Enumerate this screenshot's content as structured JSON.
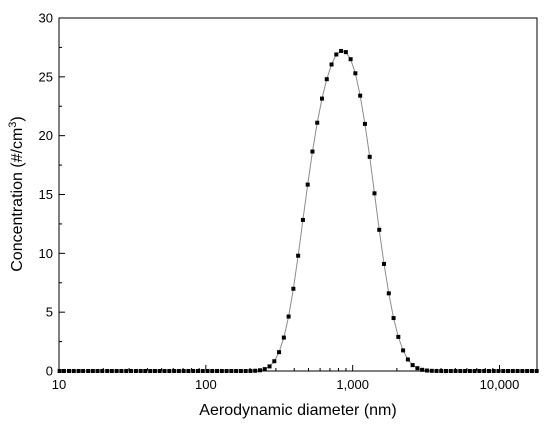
{
  "chart_data": {
    "type": "scatter",
    "title": "",
    "xlabel": "Aerodynamic diameter (nm)",
    "ylabel_main": "Concentration (#/cm",
    "ylabel_sup": "3",
    "ylabel_end": ")",
    "x_scale": "log",
    "xlim": [
      10,
      18000
    ],
    "ylim": [
      0,
      30
    ],
    "x_ticks": [
      10,
      100,
      1000,
      10000
    ],
    "x_tick_labels": [
      "10",
      "100",
      "1,000",
      "10,000"
    ],
    "y_ticks": [
      0,
      5,
      10,
      15,
      20,
      25,
      30
    ],
    "y_tick_labels": [
      "0",
      "5",
      "10",
      "15",
      "20",
      "25",
      "30"
    ],
    "grid": false,
    "legend": "none",
    "marker": "square",
    "marker_color": "#000000",
    "line_color": "#8c8c8c",
    "series": [
      {
        "x": [
          10.1,
          10.8,
          11.7,
          12.6,
          13.6,
          14.6,
          15.8,
          17.0,
          18.3,
          19.7,
          21.3,
          22.9,
          24.7,
          26.6,
          28.7,
          30.9,
          33.4,
          36.0,
          38.7,
          41.8,
          45.0,
          48.5,
          52.3,
          56.4,
          60.8,
          65.5,
          70.6,
          76.1,
          82.0,
          88.4,
          95.3,
          102.7,
          110.6,
          119.2,
          128.5,
          138.5,
          149.2,
          160.8,
          173.3,
          186.8,
          201.3,
          216.9,
          233.8,
          251.9,
          271.5,
          292.6,
          315.3,
          339.8,
          366.2,
          394.6,
          425.2,
          458.3,
          493.9,
          532.3,
          573.6,
          618.1,
          666.1,
          717.9,
          773.6,
          833.7,
          898.5,
          968.3,
          1043.5,
          1124.6,
          1211.9,
          1306.0,
          1407.5,
          1516.8,
          1634.6,
          1761.5,
          1898.4,
          2045.8,
          2204.7,
          2375.9,
          2560.5,
          2759.3,
          2973.6,
          3204.6,
          3453.5,
          3721.7,
          4010.8,
          4322.3,
          4658.0,
          5019.8,
          5409.7,
          5829.9,
          6282.7,
          6770.6,
          7296.5,
          7863.2,
          8473.9,
          9132.1,
          9841.4,
          10605.8,
          11429.5,
          12317.3,
          13273.9,
          14304.9,
          15416.0,
          16613.3,
          17904.0
        ],
        "y": [
          0,
          0,
          0,
          0,
          0,
          0,
          0,
          0,
          0,
          0,
          0,
          0,
          0,
          0,
          0,
          0,
          0,
          0,
          0,
          0,
          0,
          0,
          0,
          0,
          0,
          0,
          0,
          0,
          0,
          0,
          0,
          0,
          0,
          0,
          0,
          0,
          0,
          0,
          0,
          0,
          0.005,
          0.02,
          0.06,
          0.16,
          0.39,
          0.83,
          1.6,
          2.84,
          4.63,
          6.99,
          9.8,
          12.84,
          15.84,
          18.65,
          21.1,
          23.15,
          24.8,
          26.05,
          26.9,
          27.2,
          27.1,
          26.5,
          25.3,
          23.4,
          21.0,
          18.2,
          15.1,
          12.0,
          9.1,
          6.6,
          4.5,
          2.9,
          1.75,
          0.98,
          0.5,
          0.24,
          0.1,
          0.04,
          0.015,
          0.005,
          0,
          0,
          0,
          0,
          0,
          0,
          0,
          0,
          0,
          0,
          0,
          0,
          0,
          0,
          0,
          0,
          0,
          0,
          0,
          0,
          0
        ]
      }
    ]
  }
}
